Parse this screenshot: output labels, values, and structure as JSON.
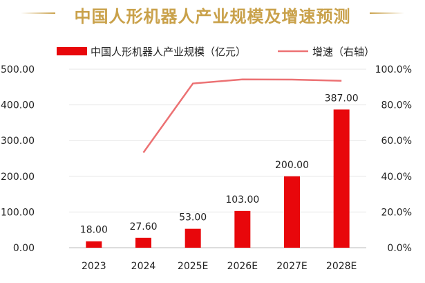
{
  "chart_data": {
    "type": "bar",
    "title": "中国人形机器人产业规模及增速预测",
    "categories": [
      "2023",
      "2024",
      "2025E",
      "2026E",
      "2027E",
      "2028E"
    ],
    "series": [
      {
        "name": "中国人形机器人产业规模（亿元）",
        "type": "bar",
        "axis": "left",
        "values": [
          18.0,
          27.6,
          53.0,
          103.0,
          200.0,
          387.0
        ],
        "labels": [
          "18.00",
          "27.60",
          "53.00",
          "103.00",
          "200.00",
          "387.00"
        ]
      },
      {
        "name": "增速（右轴）",
        "type": "line",
        "axis": "right",
        "values": [
          null,
          53.3,
          92.0,
          94.3,
          94.2,
          93.5
        ]
      }
    ],
    "y_left": {
      "min": 0,
      "max": 500,
      "ticks": [
        "0.00",
        "100.00",
        "200.00",
        "300.00",
        "400.00",
        "500.00"
      ]
    },
    "y_right": {
      "min": 0,
      "max": 100,
      "ticks": [
        "0.0%",
        "20.0%",
        "40.0%",
        "60.0%",
        "80.0%",
        "100.0%"
      ]
    },
    "legend_position": "top",
    "colors": {
      "bar": "#e8070b",
      "line": "#ec7173",
      "title": "#c9a14a",
      "grid": "#e6e6e6",
      "text": "#222222"
    }
  }
}
